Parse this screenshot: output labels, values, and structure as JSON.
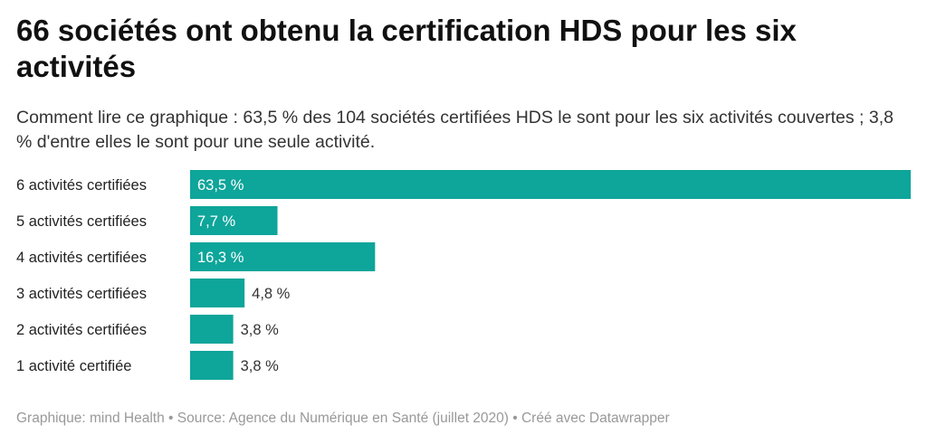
{
  "title": "66 sociétés ont obtenu la certification HDS pour les six activités",
  "subtitle": "Comment lire ce graphique : 63,5 % des 104 sociétés certifiées HDS le sont pour les six activités couvertes ; 3,8 % d'entre elles le sont pour une seule activité.",
  "footer": "Graphique: mind Health • Source: Agence du Numérique en Santé (juillet 2020) • Créé avec Datawrapper",
  "colors": {
    "bar": "#0ea59a",
    "label_inside": "#ffffff",
    "label_outside": "#333333"
  },
  "chart_data": {
    "type": "bar",
    "orientation": "horizontal",
    "categories": [
      "6 activités certifiées",
      "5 activités certifiées",
      "4 activités certifiées",
      "3 activités certifiées",
      "2 activités certifiées",
      "1 activité certifiée"
    ],
    "values": [
      63.5,
      7.7,
      16.3,
      4.8,
      3.8,
      3.8
    ],
    "value_labels": [
      "63,5 %",
      "7,7 %",
      "16,3 %",
      "4,8 %",
      "3,8 %",
      "3,8 %"
    ],
    "xlim": [
      0,
      63.5
    ],
    "grid": false,
    "legend": "none"
  }
}
